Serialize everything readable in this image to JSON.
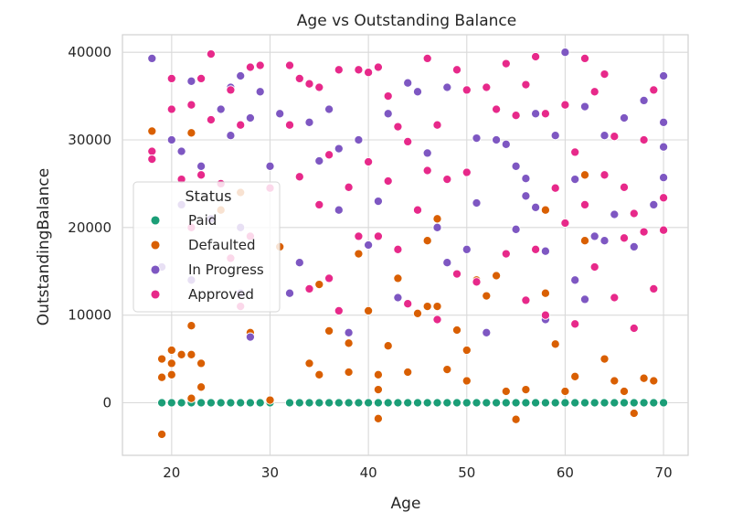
{
  "chart_data": {
    "type": "scatter",
    "title": "Age vs Outstanding Balance",
    "xlabel": "Age",
    "ylabel": "OutstandingBalance",
    "xlim": [
      15,
      72.5
    ],
    "ylim": [
      -6000,
      42000
    ],
    "xticks": [
      20,
      30,
      40,
      50,
      60,
      70
    ],
    "yticks": [
      0,
      10000,
      20000,
      30000,
      40000
    ],
    "grid": true,
    "legend": {
      "title": "Status",
      "placement": "center-left",
      "entries": [
        "Paid",
        "Defaulted",
        "In Progress",
        "Approved"
      ]
    },
    "colors": {
      "Paid": "#1b9e77",
      "Defaulted": "#d95f02",
      "In Progress": "#7e57c2",
      "Approved": "#e7298a"
    },
    "series": [
      {
        "name": "Paid",
        "points": [
          [
            19,
            0
          ],
          [
            20,
            0
          ],
          [
            21,
            0
          ],
          [
            22,
            0
          ],
          [
            23,
            0
          ],
          [
            24,
            0
          ],
          [
            25,
            0
          ],
          [
            26,
            0
          ],
          [
            27,
            0
          ],
          [
            28,
            0
          ],
          [
            29,
            0
          ],
          [
            30,
            0
          ],
          [
            32,
            0
          ],
          [
            33,
            0
          ],
          [
            34,
            0
          ],
          [
            35,
            0
          ],
          [
            36,
            0
          ],
          [
            37,
            0
          ],
          [
            38,
            0
          ],
          [
            39,
            0
          ],
          [
            40,
            0
          ],
          [
            41,
            0
          ],
          [
            42,
            0
          ],
          [
            43,
            0
          ],
          [
            44,
            0
          ],
          [
            45,
            0
          ],
          [
            46,
            0
          ],
          [
            47,
            0
          ],
          [
            48,
            0
          ],
          [
            49,
            0
          ],
          [
            50,
            0
          ],
          [
            51,
            0
          ],
          [
            52,
            0
          ],
          [
            53,
            0
          ],
          [
            54,
            0
          ],
          [
            55,
            0
          ],
          [
            56,
            0
          ],
          [
            57,
            0
          ],
          [
            58,
            0
          ],
          [
            59,
            0
          ],
          [
            60,
            0
          ],
          [
            61,
            0
          ],
          [
            62,
            0
          ],
          [
            63,
            0
          ],
          [
            64,
            0
          ],
          [
            65,
            0
          ],
          [
            66,
            0
          ],
          [
            67,
            0
          ],
          [
            68,
            0
          ],
          [
            69,
            0
          ],
          [
            70,
            0
          ]
        ]
      },
      {
        "name": "Defaulted",
        "points": [
          [
            18,
            31000
          ],
          [
            19,
            -3600
          ],
          [
            19,
            2900
          ],
          [
            19,
            5000
          ],
          [
            20,
            4500
          ],
          [
            20,
            6000
          ],
          [
            20,
            3200
          ],
          [
            21,
            5500
          ],
          [
            22,
            30800
          ],
          [
            22,
            8800
          ],
          [
            22,
            5500
          ],
          [
            22,
            500
          ],
          [
            23,
            4500
          ],
          [
            23,
            1800
          ],
          [
            25,
            22000
          ],
          [
            27,
            24000
          ],
          [
            28,
            8000
          ],
          [
            30,
            300
          ],
          [
            31,
            17800
          ],
          [
            34,
            4500
          ],
          [
            35,
            13500
          ],
          [
            35,
            3200
          ],
          [
            36,
            8200
          ],
          [
            38,
            6800
          ],
          [
            38,
            3500
          ],
          [
            39,
            17000
          ],
          [
            40,
            10500
          ],
          [
            41,
            3200
          ],
          [
            41,
            1500
          ],
          [
            41,
            -1800
          ],
          [
            42,
            6500
          ],
          [
            43,
            14200
          ],
          [
            44,
            3500
          ],
          [
            45,
            10200
          ],
          [
            46,
            18500
          ],
          [
            46,
            11000
          ],
          [
            47,
            21000
          ],
          [
            47,
            11000
          ],
          [
            48,
            3800
          ],
          [
            49,
            8300
          ],
          [
            50,
            6000
          ],
          [
            50,
            2500
          ],
          [
            51,
            14000
          ],
          [
            52,
            12200
          ],
          [
            53,
            14500
          ],
          [
            54,
            1300
          ],
          [
            55,
            -1900
          ],
          [
            56,
            1500
          ],
          [
            58,
            12500
          ],
          [
            58,
            22000
          ],
          [
            59,
            6700
          ],
          [
            60,
            1300
          ],
          [
            61,
            3000
          ],
          [
            62,
            26000
          ],
          [
            62,
            18500
          ],
          [
            64,
            5000
          ],
          [
            65,
            2500
          ],
          [
            66,
            1300
          ],
          [
            67,
            -1200
          ],
          [
            68,
            2800
          ],
          [
            69,
            2500
          ]
        ]
      },
      {
        "name": "In Progress",
        "points": [
          [
            18,
            39300
          ],
          [
            19,
            15500
          ],
          [
            20,
            30000
          ],
          [
            21,
            28700
          ],
          [
            21,
            22600
          ],
          [
            22,
            36700
          ],
          [
            22,
            14000
          ],
          [
            23,
            27000
          ],
          [
            24,
            21000
          ],
          [
            25,
            33500
          ],
          [
            26,
            36000
          ],
          [
            26,
            30500
          ],
          [
            27,
            37300
          ],
          [
            27,
            20000
          ],
          [
            27,
            12500
          ],
          [
            28,
            32500
          ],
          [
            28,
            7500
          ],
          [
            29,
            35500
          ],
          [
            30,
            27000
          ],
          [
            31,
            33000
          ],
          [
            32,
            12500
          ],
          [
            33,
            16000
          ],
          [
            34,
            32000
          ],
          [
            35,
            27600
          ],
          [
            36,
            33500
          ],
          [
            37,
            22000
          ],
          [
            37,
            29000
          ],
          [
            38,
            8000
          ],
          [
            39,
            30000
          ],
          [
            40,
            18000
          ],
          [
            41,
            23000
          ],
          [
            42,
            33000
          ],
          [
            43,
            12000
          ],
          [
            44,
            36500
          ],
          [
            45,
            35500
          ],
          [
            46,
            28500
          ],
          [
            47,
            20000
          ],
          [
            48,
            16000
          ],
          [
            48,
            36000
          ],
          [
            49,
            38000
          ],
          [
            50,
            17500
          ],
          [
            51,
            22800
          ],
          [
            51,
            30200
          ],
          [
            52,
            8000
          ],
          [
            53,
            30000
          ],
          [
            54,
            29500
          ],
          [
            55,
            27000
          ],
          [
            55,
            19800
          ],
          [
            56,
            25600
          ],
          [
            56,
            23600
          ],
          [
            57,
            22300
          ],
          [
            57,
            33000
          ],
          [
            58,
            17300
          ],
          [
            58,
            9500
          ],
          [
            59,
            30500
          ],
          [
            60,
            40000
          ],
          [
            61,
            14000
          ],
          [
            61,
            25500
          ],
          [
            62,
            11800
          ],
          [
            62,
            33800
          ],
          [
            63,
            19000
          ],
          [
            64,
            30500
          ],
          [
            64,
            18500
          ],
          [
            65,
            21500
          ],
          [
            66,
            32500
          ],
          [
            67,
            17800
          ],
          [
            68,
            34500
          ],
          [
            69,
            22600
          ],
          [
            70,
            37300
          ],
          [
            70,
            29200
          ],
          [
            70,
            25700
          ],
          [
            70,
            32000
          ]
        ]
      },
      {
        "name": "Approved",
        "points": [
          [
            18,
            28700
          ],
          [
            18,
            27800
          ],
          [
            20,
            37000
          ],
          [
            20,
            33500
          ],
          [
            21,
            25500
          ],
          [
            22,
            34000
          ],
          [
            22,
            20000
          ],
          [
            23,
            37000
          ],
          [
            23,
            26000
          ],
          [
            24,
            39800
          ],
          [
            24,
            32300
          ],
          [
            25,
            25000
          ],
          [
            26,
            35700
          ],
          [
            26,
            16500
          ],
          [
            27,
            31700
          ],
          [
            27,
            11000
          ],
          [
            28,
            38300
          ],
          [
            28,
            19000
          ],
          [
            29,
            38500
          ],
          [
            30,
            24500
          ],
          [
            32,
            38500
          ],
          [
            32,
            31700
          ],
          [
            33,
            37000
          ],
          [
            33,
            25800
          ],
          [
            34,
            36400
          ],
          [
            34,
            13000
          ],
          [
            35,
            36000
          ],
          [
            35,
            22600
          ],
          [
            36,
            28300
          ],
          [
            36,
            14200
          ],
          [
            37,
            38000
          ],
          [
            37,
            10500
          ],
          [
            38,
            24600
          ],
          [
            39,
            38000
          ],
          [
            39,
            19000
          ],
          [
            40,
            37700
          ],
          [
            40,
            27500
          ],
          [
            41,
            38300
          ],
          [
            41,
            19000
          ],
          [
            42,
            35000
          ],
          [
            42,
            25300
          ],
          [
            43,
            31500
          ],
          [
            43,
            17500
          ],
          [
            44,
            29800
          ],
          [
            44,
            11300
          ],
          [
            45,
            22000
          ],
          [
            46,
            39300
          ],
          [
            46,
            26500
          ],
          [
            47,
            31700
          ],
          [
            47,
            9500
          ],
          [
            48,
            25500
          ],
          [
            49,
            38000
          ],
          [
            49,
            14700
          ],
          [
            50,
            35700
          ],
          [
            50,
            26300
          ],
          [
            51,
            13800
          ],
          [
            52,
            36000
          ],
          [
            53,
            33500
          ],
          [
            54,
            38700
          ],
          [
            54,
            17000
          ],
          [
            55,
            32800
          ],
          [
            56,
            36300
          ],
          [
            56,
            11700
          ],
          [
            57,
            39500
          ],
          [
            57,
            17500
          ],
          [
            58,
            33000
          ],
          [
            58,
            10000
          ],
          [
            59,
            24500
          ],
          [
            60,
            34000
          ],
          [
            60,
            20500
          ],
          [
            61,
            28600
          ],
          [
            61,
            9000
          ],
          [
            62,
            39300
          ],
          [
            62,
            22600
          ],
          [
            63,
            35500
          ],
          [
            63,
            15500
          ],
          [
            64,
            37500
          ],
          [
            64,
            26000
          ],
          [
            65,
            30400
          ],
          [
            65,
            12000
          ],
          [
            66,
            24600
          ],
          [
            66,
            18800
          ],
          [
            67,
            21600
          ],
          [
            67,
            8500
          ],
          [
            68,
            19500
          ],
          [
            68,
            30000
          ],
          [
            69,
            35700
          ],
          [
            69,
            13000
          ],
          [
            70,
            23400
          ],
          [
            70,
            19700
          ]
        ]
      }
    ]
  }
}
